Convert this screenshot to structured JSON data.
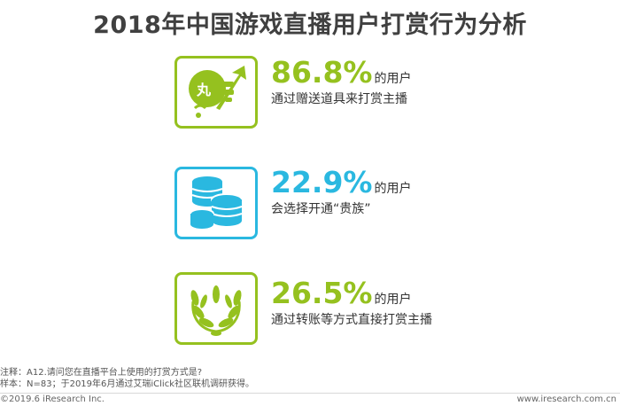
{
  "title": "2018年中国游戏直播用户打赏行为分析",
  "chart_data": {
    "type": "table",
    "title": "2018年中国游戏直播用户打赏行为分析",
    "unit": "%",
    "suffix": "的用户",
    "items": [
      {
        "value": 86.8,
        "display": "86.8%",
        "desc": "通过赠送道具来打赏主播",
        "icon": "gift-props-icon",
        "color": "#95c11f"
      },
      {
        "value": 22.9,
        "display": "22.9%",
        "desc": "会选择开通“贵族”",
        "icon": "coins-stack-icon",
        "color": "#2ab8e0"
      },
      {
        "value": 26.5,
        "display": "26.5%",
        "desc": "通过转账等方式直接打赏主播",
        "icon": "laurel-wreath-icon",
        "color": "#95c11f"
      }
    ]
  },
  "notes": {
    "line1": "注释：A12.请问您在直播平台上使用的打赏方式是?",
    "line2": "样本：N=83；于2019年6月通过艾瑞iClick社区联机调研获得。"
  },
  "footer": {
    "copyright": "©2019.6 iResearch Inc.",
    "site": "www.iresearch.com.cn"
  }
}
